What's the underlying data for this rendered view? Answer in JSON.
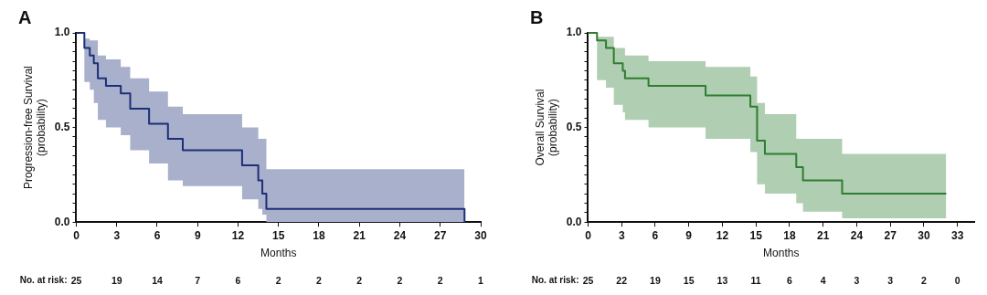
{
  "chart_data": [
    {
      "type": "step",
      "title": "A",
      "xlabel": "Months",
      "ylabel": "Progression-free Survival\n(probability)",
      "x": [
        0,
        0.6,
        1.0,
        1.3,
        1.6,
        2.2,
        3.3,
        4.0,
        5.4,
        6.8,
        7.9,
        12.3,
        13.5,
        13.8,
        14.1,
        28.8
      ],
      "series": [
        {
          "color": "#1c2f78",
          "values": [
            1,
            0.92,
            0.88,
            0.84,
            0.76,
            0.72,
            0.68,
            0.6,
            0.52,
            0.44,
            0.38,
            0.3,
            0.22,
            0.15,
            0.07,
            0
          ],
          "lower": [
            1,
            0.74,
            0.7,
            0.63,
            0.54,
            0.5,
            0.46,
            0.38,
            0.31,
            0.22,
            0.19,
            0.12,
            0.07,
            0.04,
            0,
            0
          ],
          "upper": [
            1,
            0.97,
            0.96,
            0.96,
            0.88,
            0.86,
            0.82,
            0.76,
            0.69,
            0.61,
            0.57,
            0.5,
            0.44,
            0.44,
            0.28,
            0.28
          ]
        }
      ],
      "xlim": [
        0,
        30
      ],
      "xticks": [
        0,
        3,
        6,
        9,
        12,
        15,
        18,
        21,
        24,
        27,
        30
      ],
      "ylim": [
        0,
        1
      ],
      "yticks": [
        {
          "value": 0,
          "label": "0.0"
        },
        {
          "value": 0.05,
          "label": null
        },
        {
          "value": 0.1,
          "label": null
        },
        {
          "value": 0.15,
          "label": null
        },
        {
          "value": 0.2,
          "label": null
        },
        {
          "value": 0.25,
          "label": null
        },
        {
          "value": 0.3,
          "label": null
        },
        {
          "value": 0.35,
          "label": null
        },
        {
          "value": 0.4,
          "label": null
        },
        {
          "value": 0.45,
          "label": null
        },
        {
          "value": 0.5,
          "label": "0.5"
        },
        {
          "value": 0.55,
          "label": null
        },
        {
          "value": 0.6,
          "label": null
        },
        {
          "value": 0.65,
          "label": null
        },
        {
          "value": 0.7,
          "label": null
        },
        {
          "value": 0.75,
          "label": null
        },
        {
          "value": 0.8,
          "label": null
        },
        {
          "value": 0.85,
          "label": null
        },
        {
          "value": 0.9,
          "label": null
        },
        {
          "value": 0.95,
          "label": null
        },
        {
          "value": 1,
          "label": "1.0"
        }
      ],
      "annotations": [
        "No. at risk:",
        "25 19 14 7 6 2 2 2 2 2 1"
      ]
    },
    {
      "type": "step",
      "title": "B",
      "xlabel": "Months",
      "ylabel": "Overall Survival\n(probability)",
      "x": [
        0,
        0.8,
        1.6,
        2.3,
        3.1,
        3.3,
        5.4,
        10.5,
        14.5,
        15.1,
        15.8,
        18.6,
        19.2,
        22.7,
        32.0
      ],
      "series": [
        {
          "color": "#2e7d32",
          "values": [
            1,
            0.96,
            0.92,
            0.84,
            0.8,
            0.76,
            0.72,
            0.67,
            0.61,
            0.43,
            0.36,
            0.29,
            0.22,
            0.15,
            0.15
          ],
          "lower": [
            1,
            0.75,
            0.71,
            0.62,
            0.58,
            0.54,
            0.5,
            0.44,
            0.37,
            0.2,
            0.15,
            0.1,
            0.055,
            0.02,
            0.02
          ],
          "upper": [
            1,
            0.98,
            0.98,
            0.92,
            0.92,
            0.88,
            0.85,
            0.82,
            0.77,
            0.63,
            0.57,
            0.44,
            0.44,
            0.36,
            0.36
          ]
        }
      ],
      "xlim": [
        0,
        34.5
      ],
      "xticks": [
        0,
        3,
        6,
        9,
        12,
        15,
        18,
        21,
        24,
        27,
        30,
        33
      ],
      "ylim": [
        0,
        1
      ],
      "yticks": [
        {
          "value": 0,
          "label": "0.0"
        },
        {
          "value": 0.05,
          "label": null
        },
        {
          "value": 0.1,
          "label": null
        },
        {
          "value": 0.15,
          "label": null
        },
        {
          "value": 0.2,
          "label": null
        },
        {
          "value": 0.25,
          "label": null
        },
        {
          "value": 0.3,
          "label": null
        },
        {
          "value": 0.35,
          "label": null
        },
        {
          "value": 0.4,
          "label": null
        },
        {
          "value": 0.45,
          "label": null
        },
        {
          "value": 0.5,
          "label": "0.5"
        },
        {
          "value": 0.55,
          "label": null
        },
        {
          "value": 0.6,
          "label": null
        },
        {
          "value": 0.65,
          "label": null
        },
        {
          "value": 0.7,
          "label": null
        },
        {
          "value": 0.75,
          "label": null
        },
        {
          "value": 0.8,
          "label": null
        },
        {
          "value": 0.85,
          "label": null
        },
        {
          "value": 0.9,
          "label": null
        },
        {
          "value": 0.95,
          "label": null
        },
        {
          "value": 1,
          "label": "1.0"
        }
      ],
      "annotations": [
        "No. at risk:",
        "25 22 19 15 13 11 6 4 3 3 2 0"
      ]
    }
  ]
}
